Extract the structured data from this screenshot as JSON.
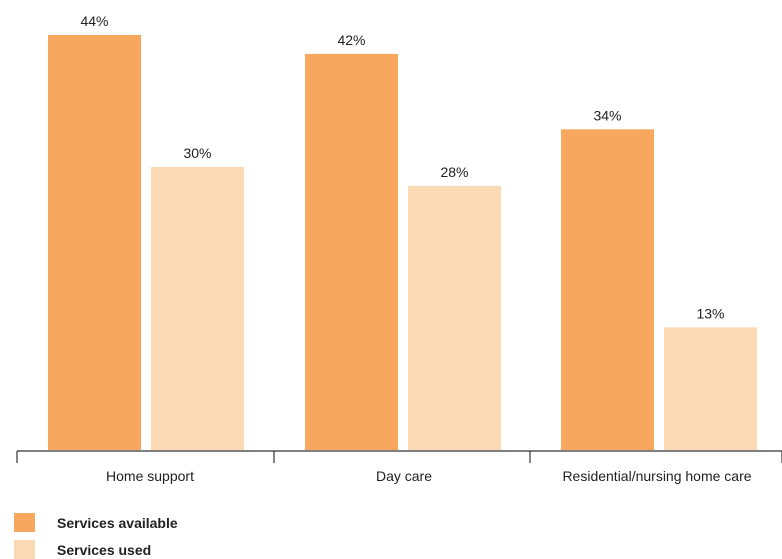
{
  "colors": {
    "available": "#F7A85E",
    "used": "#FCD9B5",
    "axis": "#333333"
  },
  "chart_data": {
    "type": "bar",
    "categories": [
      "Home support",
      "Day care",
      "Residential/nursing home care"
    ],
    "series": [
      {
        "name": "Services available",
        "values": [
          44,
          42,
          34
        ],
        "labels": [
          "44%",
          "42%",
          "34%"
        ]
      },
      {
        "name": "Services used",
        "values": [
          30,
          28,
          13
        ],
        "labels": [
          "30%",
          "28%",
          "13%"
        ]
      }
    ],
    "ylim": [
      0,
      44
    ],
    "legend": "bottom-left",
    "grid": false
  }
}
